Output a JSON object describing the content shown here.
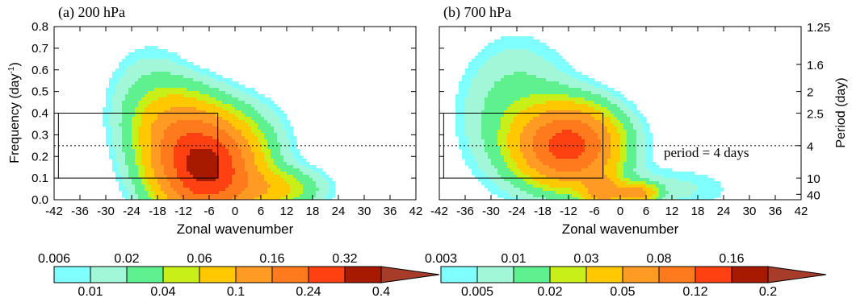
{
  "chart_data": [
    {
      "type": "heatmap",
      "title": "(a) 200 hPa",
      "xlabel": "Zonal wavenumber",
      "ylabel": "Frequency (day",
      "ylabel_sup": "-1",
      "ylabel_end": ")",
      "xlim": [
        -42,
        42
      ],
      "ylim": [
        0,
        0.8
      ],
      "xticks": [
        "-42",
        "-36",
        "-30",
        "-24",
        "-18",
        "-12",
        "-6",
        "0",
        "6",
        "12",
        "18",
        "24",
        "30",
        "36",
        "42"
      ],
      "yticks": [
        "0.0",
        "0.1",
        "0.2",
        "0.3",
        "0.4",
        "0.5",
        "0.6",
        "0.7",
        "0.8"
      ],
      "reference_line": {
        "frequency": 0.25,
        "style": "dotted"
      },
      "box": {
        "x": [
          -41,
          -4
        ],
        "y": [
          0.1,
          0.4
        ]
      },
      "levels": [
        0.006,
        0.01,
        0.02,
        0.04,
        0.06,
        0.1,
        0.16,
        0.24,
        0.32,
        0.4
      ],
      "colorbar_top_labels": [
        "0.006",
        "0.02",
        "0.06",
        "0.16",
        "0.32"
      ],
      "colorbar_bottom_labels": [
        "0.01",
        "0.04",
        "0.1",
        "0.24",
        "0.4"
      ],
      "peaks": [
        {
          "x": -7,
          "y": 0.15,
          "value": 0.35,
          "sx": 7,
          "sy": 0.14
        },
        {
          "x": -14,
          "y": 0.33,
          "value": 0.08,
          "sx": 6,
          "sy": 0.12
        },
        {
          "x": -20,
          "y": 0.45,
          "value": 0.02,
          "sx": 6,
          "sy": 0.16
        },
        {
          "x": 8,
          "y": 0.05,
          "value": 0.07,
          "sx": 7,
          "sy": 0.06
        },
        {
          "x": 4,
          "y": 0.28,
          "value": 0.01,
          "sx": 7,
          "sy": 0.13
        }
      ]
    },
    {
      "type": "heatmap",
      "title": "(b) 700 hPa",
      "xlabel": "Zonal wavenumber",
      "y2label": "Period (day)",
      "xlim": [
        -42,
        42
      ],
      "ylim": [
        0,
        0.8
      ],
      "xticks": [
        "-42",
        "-36",
        "-30",
        "-24",
        "-18",
        "-12",
        "-6",
        "0",
        "6",
        "12",
        "18",
        "24",
        "30",
        "36",
        "42"
      ],
      "y2ticks": [
        {
          "label": "1.25",
          "frequency": 0.8
        },
        {
          "label": "1.6",
          "frequency": 0.625
        },
        {
          "label": "2",
          "frequency": 0.5
        },
        {
          "label": "2.5",
          "frequency": 0.4
        },
        {
          "label": "4",
          "frequency": 0.25
        },
        {
          "label": "10",
          "frequency": 0.1
        },
        {
          "label": "40",
          "frequency": 0.025
        }
      ],
      "reference_line": {
        "frequency": 0.25,
        "style": "dotted"
      },
      "annotation": "period = 4 days",
      "box": {
        "x": [
          -41,
          -4
        ],
        "y": [
          0.1,
          0.4
        ]
      },
      "levels": [
        0.003,
        0.005,
        0.01,
        0.02,
        0.03,
        0.05,
        0.08,
        0.12,
        0.16,
        0.2
      ],
      "colorbar_top_labels": [
        "0.003",
        "0.01",
        "0.03",
        "0.08",
        "0.16"
      ],
      "colorbar_bottom_labels": [
        "0.005",
        "0.02",
        "0.05",
        "0.12",
        "0.2"
      ],
      "peaks": [
        {
          "x": -12,
          "y": 0.25,
          "value": 0.14,
          "sx": 7,
          "sy": 0.11
        },
        {
          "x": -24,
          "y": 0.4,
          "value": 0.015,
          "sx": 8,
          "sy": 0.2
        },
        {
          "x": -4,
          "y": 0.04,
          "value": 0.06,
          "sx": 3,
          "sy": 0.05
        },
        {
          "x": 4,
          "y": 0.03,
          "value": 0.06,
          "sx": 3,
          "sy": 0.03
        },
        {
          "x": 12,
          "y": 0.05,
          "value": 0.006,
          "sx": 10,
          "sy": 0.07
        }
      ]
    }
  ],
  "colorbar_colors": [
    "#80ffff",
    "#a2f7d8",
    "#5ff090",
    "#c8f018",
    "#ffc800",
    "#ff9b23",
    "#ff7a1c",
    "#ff4010",
    "#a81a00",
    "#a83c2a"
  ]
}
